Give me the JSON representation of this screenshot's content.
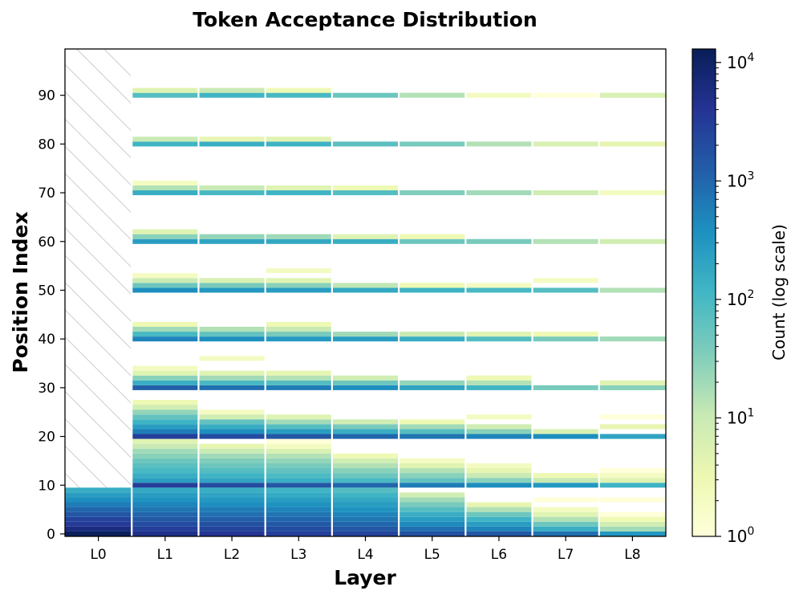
{
  "chart_data": {
    "type": "heatmap",
    "title": "Token Acceptance Distribution",
    "xlabel": "Layer",
    "ylabel": "Position Index",
    "colorbar_label": "Count (log scale)",
    "colorbar_scale": "log",
    "colorbar_range": [
      1,
      13000
    ],
    "colorbar_ticks": [
      {
        "value": 1,
        "base": "10",
        "exp": "0"
      },
      {
        "value": 10,
        "base": "10",
        "exp": "1"
      },
      {
        "value": 100,
        "base": "10",
        "exp": "2"
      },
      {
        "value": 1000,
        "base": "10",
        "exp": "3"
      },
      {
        "value": 10000,
        "base": "10",
        "exp": "4"
      }
    ],
    "colormap": "YlGnBu",
    "colormap_stops": [
      "#ffffd9",
      "#edf8b1",
      "#c7e9b4",
      "#7fcdbb",
      "#41b6c4",
      "#1d91c0",
      "#225ea8",
      "#253494",
      "#081d58"
    ],
    "x_categories": [
      "L0",
      "L1",
      "L2",
      "L3",
      "L4",
      "L5",
      "L6",
      "L7",
      "L8"
    ],
    "y_ticks": [
      0,
      10,
      20,
      30,
      40,
      50,
      60,
      70,
      80,
      90
    ],
    "ylim": [
      -0.5,
      99.5
    ],
    "hatched_region": {
      "layer": "L0",
      "positions": [
        10,
        99
      ]
    },
    "layers": [
      {
        "name": "L0",
        "cells": [
          [
            0,
            12000
          ],
          [
            1,
            6000
          ],
          [
            2,
            3500
          ],
          [
            3,
            2500
          ],
          [
            4,
            1500
          ],
          [
            5,
            1000
          ],
          [
            6,
            600
          ],
          [
            7,
            400
          ],
          [
            8,
            250
          ],
          [
            9,
            150
          ]
        ]
      },
      {
        "name": "L1",
        "cells": [
          [
            0,
            5000
          ],
          [
            1,
            3000
          ],
          [
            2,
            2000
          ],
          [
            3,
            1500
          ],
          [
            4,
            1000
          ],
          [
            5,
            700
          ],
          [
            6,
            500
          ],
          [
            7,
            350
          ],
          [
            8,
            250
          ],
          [
            9,
            180
          ],
          [
            10,
            3000
          ],
          [
            11,
            250
          ],
          [
            12,
            150
          ],
          [
            13,
            100
          ],
          [
            14,
            70
          ],
          [
            15,
            50
          ],
          [
            16,
            30
          ],
          [
            17,
            20
          ],
          [
            18,
            10
          ],
          [
            19,
            5
          ],
          [
            20,
            3000
          ],
          [
            21,
            600
          ],
          [
            22,
            250
          ],
          [
            23,
            120
          ],
          [
            24,
            60
          ],
          [
            25,
            25
          ],
          [
            26,
            8
          ],
          [
            27,
            3
          ],
          [
            30,
            1200
          ],
          [
            31,
            150
          ],
          [
            32,
            30
          ],
          [
            33,
            5
          ],
          [
            34,
            2
          ],
          [
            40,
            500
          ],
          [
            41,
            100
          ],
          [
            42,
            20
          ],
          [
            43,
            3
          ],
          [
            50,
            400
          ],
          [
            51,
            50
          ],
          [
            52,
            10
          ],
          [
            53,
            2
          ],
          [
            60,
            250
          ],
          [
            61,
            30
          ],
          [
            62,
            5
          ],
          [
            70,
            150
          ],
          [
            71,
            15
          ],
          [
            72,
            2
          ],
          [
            80,
            120
          ],
          [
            81,
            10
          ],
          [
            90,
            80
          ],
          [
            91,
            5
          ]
        ]
      },
      {
        "name": "L2",
        "cells": [
          [
            0,
            4000
          ],
          [
            1,
            2500
          ],
          [
            2,
            1800
          ],
          [
            3,
            1200
          ],
          [
            4,
            800
          ],
          [
            5,
            600
          ],
          [
            6,
            400
          ],
          [
            7,
            300
          ],
          [
            8,
            200
          ],
          [
            9,
            150
          ],
          [
            10,
            2000
          ],
          [
            11,
            200
          ],
          [
            12,
            120
          ],
          [
            13,
            80
          ],
          [
            14,
            50
          ],
          [
            15,
            35
          ],
          [
            16,
            20
          ],
          [
            17,
            10
          ],
          [
            18,
            4
          ],
          [
            20,
            2000
          ],
          [
            21,
            400
          ],
          [
            22,
            150
          ],
          [
            23,
            60
          ],
          [
            24,
            8
          ],
          [
            25,
            2
          ],
          [
            30,
            800
          ],
          [
            31,
            100
          ],
          [
            32,
            20
          ],
          [
            33,
            5
          ],
          [
            36,
            2
          ],
          [
            40,
            400
          ],
          [
            41,
            60
          ],
          [
            42,
            15
          ],
          [
            50,
            300
          ],
          [
            51,
            40
          ],
          [
            52,
            6
          ],
          [
            60,
            200
          ],
          [
            61,
            25
          ],
          [
            70,
            100
          ],
          [
            71,
            10
          ],
          [
            80,
            150
          ],
          [
            81,
            4
          ],
          [
            90,
            120
          ],
          [
            91,
            10
          ]
        ]
      },
      {
        "name": "L3",
        "cells": [
          [
            0,
            3000
          ],
          [
            1,
            2000
          ],
          [
            2,
            1400
          ],
          [
            3,
            1000
          ],
          [
            4,
            700
          ],
          [
            5,
            500
          ],
          [
            6,
            350
          ],
          [
            7,
            250
          ],
          [
            8,
            170
          ],
          [
            9,
            120
          ],
          [
            10,
            1500
          ],
          [
            11,
            150
          ],
          [
            12,
            90
          ],
          [
            13,
            60
          ],
          [
            14,
            40
          ],
          [
            15,
            25
          ],
          [
            16,
            15
          ],
          [
            17,
            6
          ],
          [
            18,
            2
          ],
          [
            19,
            1
          ],
          [
            20,
            1500
          ],
          [
            21,
            250
          ],
          [
            22,
            80
          ],
          [
            23,
            20
          ],
          [
            24,
            5
          ],
          [
            30,
            600
          ],
          [
            31,
            80
          ],
          [
            32,
            15
          ],
          [
            33,
            4
          ],
          [
            40,
            300
          ],
          [
            41,
            40
          ],
          [
            42,
            10
          ],
          [
            43,
            3
          ],
          [
            50,
            250
          ],
          [
            51,
            30
          ],
          [
            52,
            5
          ],
          [
            54,
            2
          ],
          [
            60,
            180
          ],
          [
            61,
            20
          ],
          [
            70,
            120
          ],
          [
            71,
            5
          ],
          [
            80,
            130
          ],
          [
            81,
            5
          ],
          [
            90,
            100
          ],
          [
            91,
            3
          ]
        ]
      },
      {
        "name": "L4",
        "cells": [
          [
            0,
            2500
          ],
          [
            1,
            1500
          ],
          [
            2,
            1000
          ],
          [
            3,
            700
          ],
          [
            4,
            500
          ],
          [
            5,
            350
          ],
          [
            6,
            250
          ],
          [
            7,
            180
          ],
          [
            8,
            120
          ],
          [
            9,
            80
          ],
          [
            10,
            1000
          ],
          [
            11,
            100
          ],
          [
            12,
            50
          ],
          [
            13,
            30
          ],
          [
            14,
            15
          ],
          [
            15,
            8
          ],
          [
            16,
            3
          ],
          [
            20,
            1000
          ],
          [
            21,
            150
          ],
          [
            22,
            40
          ],
          [
            23,
            8
          ],
          [
            30,
            400
          ],
          [
            31,
            50
          ],
          [
            32,
            8
          ],
          [
            40,
            250
          ],
          [
            41,
            20
          ],
          [
            50,
            180
          ],
          [
            51,
            12
          ],
          [
            60,
            150
          ],
          [
            61,
            5
          ],
          [
            70,
            80
          ],
          [
            71,
            3
          ],
          [
            80,
            70
          ],
          [
            90,
            50
          ]
        ]
      },
      {
        "name": "L5",
        "cells": [
          [
            0,
            1800
          ],
          [
            1,
            800
          ],
          [
            2,
            450
          ],
          [
            3,
            250
          ],
          [
            4,
            150
          ],
          [
            5,
            80
          ],
          [
            6,
            40
          ],
          [
            7,
            20
          ],
          [
            8,
            8
          ],
          [
            10,
            600
          ],
          [
            11,
            60
          ],
          [
            12,
            30
          ],
          [
            13,
            15
          ],
          [
            14,
            5
          ],
          [
            15,
            2
          ],
          [
            20,
            700
          ],
          [
            21,
            80
          ],
          [
            22,
            20
          ],
          [
            23,
            3
          ],
          [
            30,
            200
          ],
          [
            31,
            25
          ],
          [
            40,
            150
          ],
          [
            41,
            10
          ],
          [
            50,
            120
          ],
          [
            51,
            3
          ],
          [
            60,
            50
          ],
          [
            61,
            3
          ],
          [
            70,
            35
          ],
          [
            80,
            40
          ],
          [
            90,
            15
          ]
        ]
      },
      {
        "name": "L6",
        "cells": [
          [
            0,
            1500
          ],
          [
            1,
            500
          ],
          [
            2,
            250
          ],
          [
            3,
            120
          ],
          [
            4,
            50
          ],
          [
            5,
            15
          ],
          [
            6,
            4
          ],
          [
            10,
            400
          ],
          [
            11,
            30
          ],
          [
            12,
            10
          ],
          [
            13,
            4
          ],
          [
            14,
            2
          ],
          [
            20,
            500
          ],
          [
            21,
            30
          ],
          [
            22,
            8
          ],
          [
            24,
            2
          ],
          [
            30,
            120
          ],
          [
            31,
            15
          ],
          [
            32,
            3
          ],
          [
            40,
            80
          ],
          [
            41,
            5
          ],
          [
            50,
            100
          ],
          [
            51,
            2
          ],
          [
            60,
            40
          ],
          [
            70,
            20
          ],
          [
            80,
            15
          ],
          [
            90,
            2
          ]
        ]
      },
      {
        "name": "L7",
        "cells": [
          [
            0,
            800
          ],
          [
            1,
            150
          ],
          [
            2,
            50
          ],
          [
            3,
            15
          ],
          [
            4,
            5
          ],
          [
            5,
            2
          ],
          [
            7,
            1
          ],
          [
            10,
            300
          ],
          [
            11,
            10
          ],
          [
            12,
            3
          ],
          [
            20,
            400
          ],
          [
            21,
            6
          ],
          [
            30,
            40
          ],
          [
            40,
            40
          ],
          [
            41,
            3
          ],
          [
            50,
            80
          ],
          [
            52,
            2
          ],
          [
            60,
            15
          ],
          [
            70,
            8
          ],
          [
            80,
            6
          ],
          [
            90,
            1
          ]
        ]
      },
      {
        "name": "L8",
        "cells": [
          [
            0,
            300
          ],
          [
            1,
            20
          ],
          [
            2,
            8
          ],
          [
            3,
            3
          ],
          [
            4,
            1
          ],
          [
            7,
            1
          ],
          [
            10,
            120
          ],
          [
            11,
            5
          ],
          [
            12,
            2
          ],
          [
            13,
            1
          ],
          [
            20,
            200
          ],
          [
            22,
            4
          ],
          [
            24,
            1
          ],
          [
            30,
            30
          ],
          [
            31,
            5
          ],
          [
            40,
            20
          ],
          [
            50,
            15
          ],
          [
            60,
            8
          ],
          [
            70,
            2
          ],
          [
            80,
            4
          ],
          [
            90,
            6
          ]
        ]
      }
    ]
  }
}
